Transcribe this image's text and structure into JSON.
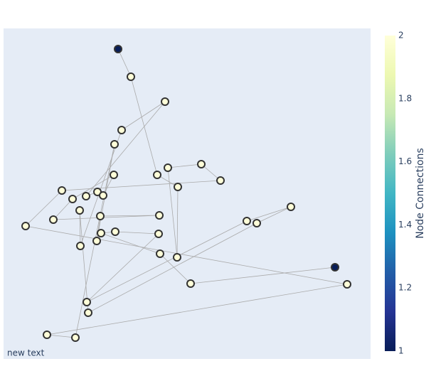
{
  "chart_data": {
    "type": "network",
    "annotation": "new text",
    "x": [
      161,
      179,
      227,
      166,
      156,
      155,
      216,
      231,
      278,
      305,
      245,
      82,
      97,
      116,
      132,
      140,
      107,
      136,
      219,
      70,
      31,
      342,
      356,
      404,
      137,
      157,
      218,
      131,
      108,
      220,
      244,
      466,
      263,
      483,
      117,
      119,
      61,
      101
    ],
    "y": [
      436,
      397,
      362,
      322,
      302,
      259,
      259,
      269,
      274,
      251,
      242,
      237,
      225,
      229,
      235,
      230,
      209,
      201,
      202,
      196,
      187,
      194,
      191,
      214,
      177,
      179,
      176,
      166,
      159,
      148,
      143,
      129,
      106,
      105,
      80,
      65,
      34,
      30
    ],
    "connections": [
      1,
      2,
      2,
      2,
      2,
      2,
      2,
      2,
      2,
      2,
      2,
      2,
      2,
      2,
      2,
      2,
      2,
      2,
      2,
      2,
      2,
      2,
      2,
      2,
      2,
      2,
      2,
      2,
      2,
      2,
      2,
      1,
      2,
      2,
      2,
      2,
      2,
      2
    ],
    "edges": [
      [
        0,
        1
      ],
      [
        1,
        6
      ],
      [
        6,
        10
      ],
      [
        10,
        30
      ],
      [
        30,
        7
      ],
      [
        7,
        8
      ],
      [
        8,
        9
      ],
      [
        9,
        11
      ],
      [
        11,
        20
      ],
      [
        20,
        33
      ],
      [
        33,
        36
      ],
      [
        36,
        37
      ],
      [
        37,
        4
      ],
      [
        4,
        27
      ],
      [
        27,
        17
      ],
      [
        17,
        18
      ],
      [
        18,
        19
      ],
      [
        19,
        12
      ],
      [
        12,
        5
      ],
      [
        5,
        15
      ],
      [
        15,
        14
      ],
      [
        14,
        13
      ],
      [
        13,
        2
      ],
      [
        2,
        3
      ],
      [
        3,
        28
      ],
      [
        28,
        16
      ],
      [
        16,
        35
      ],
      [
        35,
        22
      ],
      [
        22,
        23
      ],
      [
        23,
        21
      ],
      [
        21,
        34
      ],
      [
        34,
        26
      ],
      [
        26,
        25
      ],
      [
        25,
        24
      ],
      [
        24,
        29
      ],
      [
        29,
        32
      ],
      [
        32,
        31
      ]
    ],
    "xlim": [
      0,
      516
    ],
    "ylim": [
      0,
      465
    ],
    "colorbar": {
      "title": "Node Connections",
      "lim": [
        1,
        2
      ],
      "ticks": [
        1,
        1.2,
        1.4,
        1.6,
        1.8,
        2
      ],
      "colorscale": [
        "#081d58",
        "#253494",
        "#225ea8",
        "#1d91c0",
        "#41b6c4",
        "#7fcdbb",
        "#c7e9b4",
        "#edf8b1",
        "#ffffd9"
      ]
    },
    "edge_color": "#aaaaaa",
    "node_outline": "#333333"
  }
}
